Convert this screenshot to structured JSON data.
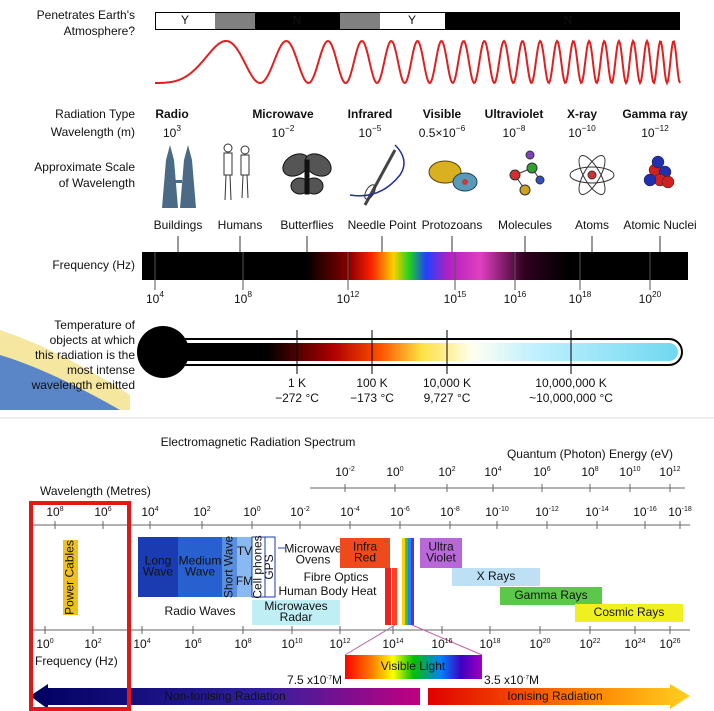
{
  "atmosphere": {
    "label": [
      "Penetrates Earth's",
      "Atmosphere?"
    ],
    "segments": [
      "Y",
      "N",
      "Y",
      "N"
    ]
  },
  "row_labels": {
    "radiation_type": "Radiation Type",
    "wavelength": "Wavelength (m)",
    "scale": [
      "Approximate Scale",
      "of Wavelength"
    ],
    "frequency": "Frequency (Hz)",
    "temperature": [
      "Temperature of",
      "objects at which",
      "this radiation is the",
      "most intense",
      "wavelength emitted"
    ]
  },
  "radiation_types": [
    {
      "name": "Radio",
      "wavelength": {
        "base": "10",
        "exp": "3"
      }
    },
    {
      "name": "Microwave",
      "wavelength": {
        "base": "10",
        "exp": "−2"
      }
    },
    {
      "name": "Infrared",
      "wavelength": {
        "base": "10",
        "exp": "−5"
      }
    },
    {
      "name": "Visible",
      "wavelength": {
        "base": "0.5×10",
        "exp": "−6"
      }
    },
    {
      "name": "Ultraviolet",
      "wavelength": {
        "base": "10",
        "exp": "−8"
      }
    },
    {
      "name": "X-ray",
      "wavelength": {
        "base": "10",
        "exp": "−10"
      }
    },
    {
      "name": "Gamma ray",
      "wavelength": {
        "base": "10",
        "exp": "−12"
      }
    }
  ],
  "scale_objects": [
    "Buildings",
    "Humans",
    "Butterflies",
    "Needle Point",
    "Protozoans",
    "Molecules",
    "Atoms",
    "Atomic Nuclei"
  ],
  "frequency_ticks": [
    {
      "base": "10",
      "exp": "4"
    },
    {
      "base": "10",
      "exp": "8"
    },
    {
      "base": "10",
      "exp": "12"
    },
    {
      "base": "10",
      "exp": "15"
    },
    {
      "base": "10",
      "exp": "16"
    },
    {
      "base": "10",
      "exp": "18"
    },
    {
      "base": "10",
      "exp": "20"
    }
  ],
  "temperatures": [
    {
      "kelvin": "1 K",
      "celsius": "−272 °C"
    },
    {
      "kelvin": "100 K",
      "celsius": "−173 °C"
    },
    {
      "kelvin": "10,000 K",
      "celsius": "9,727 °C"
    },
    {
      "kelvin": "10,000,000 K",
      "celsius": "~10,000,000 °C"
    }
  ],
  "spectrum": {
    "title": "Electromagnetic Radiation Spectrum",
    "energy_label": "Quantum (Photon) Energy (eV)",
    "energy_ticks": [
      {
        "base": "10",
        "exp": "-2"
      },
      {
        "base": "10",
        "exp": "0"
      },
      {
        "base": "10",
        "exp": "2"
      },
      {
        "base": "10",
        "exp": "4"
      },
      {
        "base": "10",
        "exp": "6"
      },
      {
        "base": "10",
        "exp": "8"
      },
      {
        "base": "10",
        "exp": "10"
      },
      {
        "base": "10",
        "exp": "12"
      }
    ],
    "wavelength_label": "Wavelength (Metres)",
    "wavelength_ticks": [
      {
        "base": "10",
        "exp": "8"
      },
      {
        "base": "10",
        "exp": "6"
      },
      {
        "base": "10",
        "exp": "4"
      },
      {
        "base": "10",
        "exp": "2"
      },
      {
        "base": "10",
        "exp": "0"
      },
      {
        "base": "10",
        "exp": "-2"
      },
      {
        "base": "10",
        "exp": "-4"
      },
      {
        "base": "10",
        "exp": "-6"
      },
      {
        "base": "10",
        "exp": "-8"
      },
      {
        "base": "10",
        "exp": "-10"
      },
      {
        "base": "10",
        "exp": "-12"
      },
      {
        "base": "10",
        "exp": "-14"
      },
      {
        "base": "10",
        "exp": "-16"
      },
      {
        "base": "10",
        "exp": "-18"
      }
    ],
    "bands": [
      [
        "Power Cables"
      ],
      [
        "Long",
        "Wave"
      ],
      [
        "Medium",
        "Wave"
      ],
      [
        "Short Wave"
      ],
      [
        "TV"
      ],
      [
        "FM"
      ],
      [
        "Cell phones"
      ],
      [
        "GPS"
      ],
      [
        "Microwave",
        "Ovens"
      ],
      [
        "Infra",
        "Red"
      ],
      [
        "Ultra",
        "Violet"
      ],
      [
        "Fibre Optics"
      ],
      [
        "Human Body Heat"
      ],
      [
        "X Rays"
      ],
      [
        "Gamma Rays"
      ],
      [
        "Cosmic Rays"
      ],
      [
        "Radio Waves"
      ],
      [
        "Microwaves",
        "Radar"
      ]
    ],
    "frequency_label": "Frequency (Hz)",
    "frequency_ticks": [
      {
        "base": "10",
        "exp": "0"
      },
      {
        "base": "10",
        "exp": "2"
      },
      {
        "base": "10",
        "exp": "4"
      },
      {
        "base": "10",
        "exp": "6"
      },
      {
        "base": "10",
        "exp": "8"
      },
      {
        "base": "10",
        "exp": "10"
      },
      {
        "base": "10",
        "exp": "12"
      },
      {
        "base": "10",
        "exp": "14"
      },
      {
        "base": "10",
        "exp": "16"
      },
      {
        "base": "10",
        "exp": "18"
      },
      {
        "base": "10",
        "exp": "20"
      },
      {
        "base": "10",
        "exp": "22"
      },
      {
        "base": "10",
        "exp": "24"
      },
      {
        "base": "10",
        "exp": "26"
      }
    ],
    "visible_light": "Visible Light",
    "visible_limits": [
      {
        "base": "7.5 x10",
        "exp": "-7",
        "unit": "M"
      },
      {
        "base": "3.5 x10",
        "exp": "-7",
        "unit": "M"
      }
    ],
    "non_ionising": "Non-Ionising Radiation",
    "ionising": "Ionising Radiation"
  }
}
